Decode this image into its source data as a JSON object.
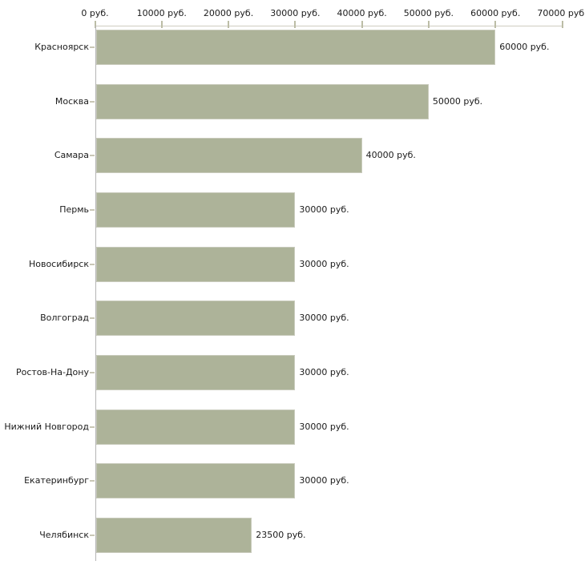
{
  "chart_data": {
    "type": "bar",
    "orientation": "horizontal",
    "title": "",
    "categories": [
      "Красноярск",
      "Москва",
      "Самара",
      "Пермь",
      "Новосибирск",
      "Волгоград",
      "Ростов-На-Дону",
      "Нижний Новгород",
      "Екатеринбург",
      "Челябинск"
    ],
    "values": [
      60000,
      50000,
      40000,
      30000,
      30000,
      30000,
      30000,
      30000,
      30000,
      23500
    ],
    "value_labels": [
      "60000 руб.",
      "50000 руб.",
      "40000 руб.",
      "30000 руб.",
      "30000 руб.",
      "30000 руб.",
      "30000 руб.",
      "30000 руб.",
      "30000 руб.",
      "23500 руб."
    ],
    "x_axis": {
      "position": "top",
      "min": 0,
      "max": 70000,
      "tick_values": [
        0,
        10000,
        20000,
        30000,
        40000,
        50000,
        60000,
        70000
      ],
      "tick_labels": [
        "0 руб.",
        "10000 руб.",
        "20000 руб.",
        "30000 руб.",
        "40000 руб.",
        "50000 руб.",
        "60000 руб.",
        "70000 руб."
      ]
    },
    "grid": "off",
    "legend": "none",
    "colors": {
      "bar_fill": "#adb399",
      "bar_border": "#c8cabb",
      "axis_line_top": "#cfcdc1",
      "axis_line_left": "#b5b5b5",
      "tick_mark": "#bcbda6",
      "text": "#1b1b1b",
      "background": "#ffffff"
    }
  }
}
